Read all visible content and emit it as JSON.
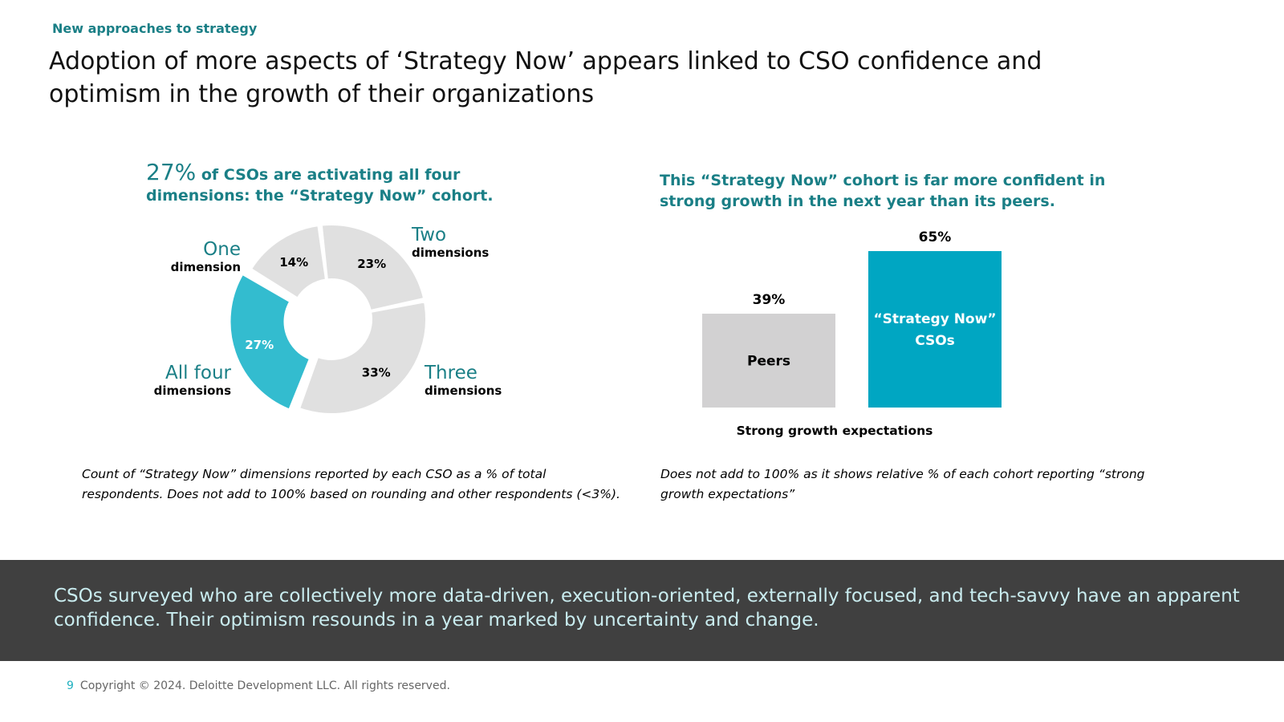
{
  "header": {
    "kicker": "New approaches to strategy",
    "title": "Adoption of more aspects of ‘Strategy Now’ appears linked to CSO confidence and optimism in the growth of their organizations"
  },
  "left_panel": {
    "highlight": "27%",
    "lead": " of CSOs are activating all four dimensions: the “Strategy Now” cohort.",
    "segments": [
      {
        "word": "One",
        "sub": "dimension"
      },
      {
        "word": "Two",
        "sub": "dimensions"
      },
      {
        "word": "Three",
        "sub": "dimensions"
      },
      {
        "word": "All four",
        "sub": "dimensions"
      }
    ],
    "note": "Count of “Strategy Now” dimensions reported by each CSO as a % of total respondents. Does not add to 100% based on rounding and other respondents (<3%)."
  },
  "right_panel": {
    "lead": "This “Strategy Now” cohort is far more confident in strong growth in the next year than its peers.",
    "note": "Does not add to 100% as it shows relative % of each cohort reporting “strong growth expectations”"
  },
  "band": {
    "text": "CSOs surveyed who are collectively more data-driven, execution-oriented, externally focused, and tech-savvy have an apparent confidence. Their optimism resounds in a year marked by uncertainty and change."
  },
  "footer": {
    "page": "9",
    "copyright": "Copyright © 2024. Deloitte Development LLC. All rights reserved."
  },
  "colors": {
    "teal": "#33bccf",
    "teal_dark": "#1a7f86",
    "bar_teal": "#00a6c2",
    "gray": "#e0e0e0",
    "bar_gray": "#d2d1d2",
    "band": "#404040"
  },
  "chart_data": [
    {
      "type": "pie",
      "variant": "donut",
      "categories": [
        "One dimension",
        "Two dimensions",
        "Three dimensions",
        "All four dimensions"
      ],
      "values": [
        14,
        23,
        33,
        27
      ],
      "labels": [
        "14%",
        "23%",
        "33%",
        "27%"
      ],
      "highlight": "All four dimensions"
    },
    {
      "type": "bar",
      "categories": [
        "Peers",
        "“Strategy Now” CSOs"
      ],
      "values": [
        39,
        65
      ],
      "labels": [
        "39%",
        "65%"
      ],
      "xlabel": "Strong growth expectations",
      "ylabel": "",
      "ylim": [
        0,
        65
      ]
    }
  ]
}
